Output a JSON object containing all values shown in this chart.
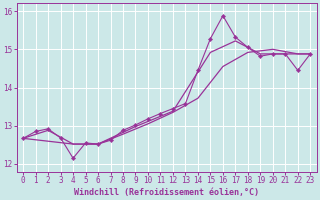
{
  "xlabel": "Windchill (Refroidissement éolien,°C)",
  "bg_color": "#cce8e8",
  "grid_color": "#ffffff",
  "line_color": "#993399",
  "xlim": [
    -0.5,
    23.5
  ],
  "ylim": [
    11.8,
    16.2
  ],
  "xticks": [
    0,
    1,
    2,
    3,
    4,
    5,
    6,
    7,
    8,
    9,
    10,
    11,
    12,
    13,
    14,
    15,
    16,
    17,
    18,
    19,
    20,
    21,
    22,
    23
  ],
  "yticks": [
    12,
    13,
    14,
    15,
    16
  ],
  "main_x": [
    0,
    1,
    2,
    3,
    4,
    5,
    6,
    7,
    8,
    9,
    10,
    11,
    12,
    13,
    14,
    15,
    16,
    17,
    18,
    19,
    20,
    21,
    22,
    23
  ],
  "main_y": [
    12.67,
    12.85,
    12.92,
    12.68,
    12.15,
    12.55,
    12.52,
    12.62,
    12.88,
    13.02,
    13.18,
    13.32,
    13.45,
    13.58,
    14.45,
    15.28,
    15.88,
    15.32,
    15.05,
    14.82,
    14.88,
    14.88,
    14.45,
    14.88
  ],
  "trend1_x": [
    0,
    4,
    6,
    8,
    10,
    12,
    14,
    16,
    18,
    20,
    22,
    23
  ],
  "trend1_y": [
    12.67,
    12.52,
    12.52,
    12.78,
    13.05,
    13.35,
    13.72,
    14.55,
    14.92,
    15.0,
    14.88,
    14.88
  ],
  "trend2_x": [
    0,
    2,
    4,
    6,
    9,
    12,
    15,
    17,
    19,
    21,
    23
  ],
  "trend2_y": [
    12.67,
    12.88,
    12.52,
    12.52,
    12.98,
    13.38,
    14.92,
    15.22,
    14.88,
    14.88,
    14.88
  ]
}
